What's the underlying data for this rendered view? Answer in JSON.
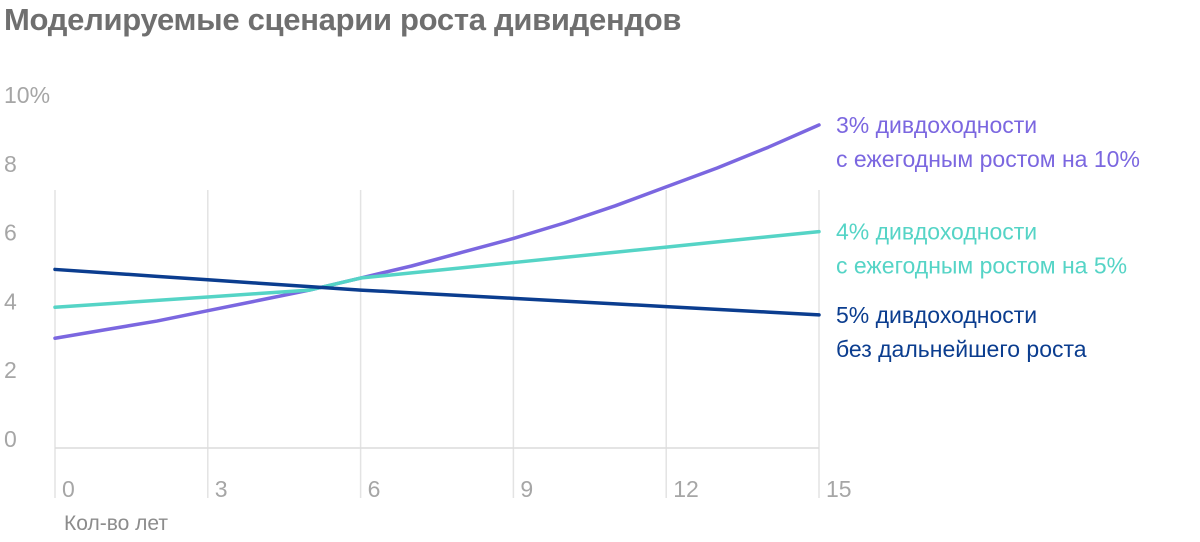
{
  "title": "Моделируемые сценарии роста дивидендов",
  "chart_data": {
    "type": "line",
    "title": "Моделируемые сценарии роста дивидендов",
    "xlabel": "Кол-во лет",
    "ylabel": "",
    "xlim": [
      0,
      15
    ],
    "ylim": [
      0,
      10
    ],
    "x_ticks": [
      {
        "value": 0,
        "label": "0"
      },
      {
        "value": 3,
        "label": "3"
      },
      {
        "value": 6,
        "label": "6"
      },
      {
        "value": 9,
        "label": "9"
      },
      {
        "value": 12,
        "label": "12"
      },
      {
        "value": 15,
        "label": "15"
      }
    ],
    "y_ticks": [
      {
        "value": 0,
        "label": "0"
      },
      {
        "value": 2,
        "label": "2"
      },
      {
        "value": 4,
        "label": "4"
      },
      {
        "value": 6,
        "label": "6"
      },
      {
        "value": 8,
        "label": "8"
      },
      {
        "value": 10,
        "label": "10%"
      }
    ],
    "grid": {
      "vertical": true,
      "horizontal": false
    },
    "x": [
      0,
      1,
      2,
      3,
      4,
      5,
      6,
      7,
      8,
      9,
      10,
      11,
      12,
      13,
      14,
      15
    ],
    "series": [
      {
        "label_lines": [
          "3% дивдоходности",
          "с ежегодным ростом на 10%"
        ],
        "color": "#7b67e0",
        "values": [
          2.9,
          3.15,
          3.4,
          3.7,
          4.0,
          4.3,
          4.65,
          5.0,
          5.4,
          5.8,
          6.25,
          6.75,
          7.3,
          7.85,
          8.45,
          9.1
        ]
      },
      {
        "label_lines": [
          "4% дивдоходности",
          "с ежегодным ростом на 5%"
        ],
        "color": "#55d4c6",
        "values": [
          3.8,
          3.9,
          4.0,
          4.1,
          4.2,
          4.3,
          4.65,
          4.8,
          4.95,
          5.1,
          5.25,
          5.4,
          5.55,
          5.7,
          5.85,
          6.0
        ]
      },
      {
        "label_lines": [
          "5% дивдоходности",
          "без дальнейшего роста"
        ],
        "color": "#0b3d8f",
        "values": [
          4.9,
          4.8,
          4.7,
          4.6,
          4.5,
          4.4,
          4.3,
          4.22,
          4.14,
          4.06,
          3.98,
          3.9,
          3.82,
          3.74,
          3.66,
          3.58
        ]
      }
    ]
  }
}
